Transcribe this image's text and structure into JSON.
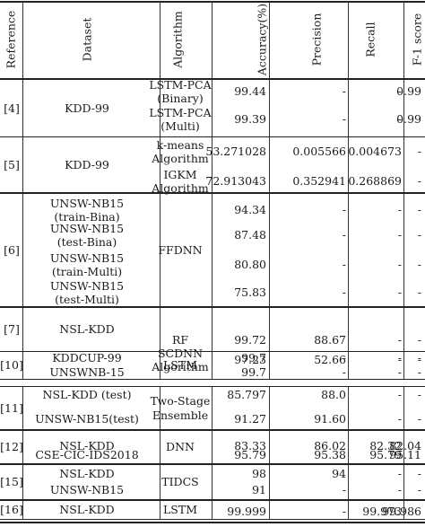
{
  "headers": {
    "reference": "Reference",
    "dataset": "Dataset",
    "algorithm": "Algorithm",
    "accuracy": "Accuracy(%)",
    "precision": "Precision",
    "recall": "Recall",
    "f1": "F-1 score"
  },
  "groups": [
    {
      "ref": "[4]",
      "datasets": [
        {
          "lines": [
            "KDD-99"
          ]
        }
      ],
      "algorithms": [
        {
          "lines": [
            "LSTM-PCA",
            "(Binary)"
          ]
        },
        {
          "lines": [
            "LSTM-PCA",
            "(Multi)"
          ]
        }
      ],
      "rows": [
        {
          "accuracy": "99.44",
          "precision": "-",
          "recall": "-",
          "f1": "0.99"
        },
        {
          "accuracy": "99.39",
          "precision": "-",
          "recall": "-",
          "f1": "0.99"
        }
      ]
    },
    {
      "ref": "[5]",
      "datasets": [
        {
          "lines": [
            "KDD-99"
          ]
        }
      ],
      "algorithms": [
        {
          "lines": [
            "k-means",
            "Algorithm"
          ]
        },
        {
          "lines": [
            "IGKM",
            "Algorithm"
          ]
        }
      ],
      "rows": [
        {
          "accuracy": "53.271028",
          "precision": "0.005566",
          "recall": "0.004673",
          "f1": "-"
        },
        {
          "accuracy": "72.913043",
          "precision": "0.352941",
          "recall": "0.268869",
          "f1": "-"
        }
      ]
    },
    {
      "ref": "[6]",
      "datasets": [
        {
          "lines": [
            "UNSW-NB15",
            "(train-Bina)"
          ]
        },
        {
          "lines": [
            "UNSW-NB15",
            "(test-Bina)"
          ]
        },
        {
          "lines": [
            "UNSW-NB15",
            "(train-Multi)"
          ]
        },
        {
          "lines": [
            "UNSW-NB15",
            "(test-Multi)"
          ]
        }
      ],
      "algorithms": [
        {
          "lines": [
            "FFDNN"
          ]
        }
      ],
      "rows": [
        {
          "accuracy": "94.34",
          "precision": "-",
          "recall": "-",
          "f1": "-"
        },
        {
          "accuracy": "87.48",
          "precision": "-",
          "recall": "-",
          "f1": "-"
        },
        {
          "accuracy": "80.80",
          "precision": "-",
          "recall": "-",
          "f1": "-"
        },
        {
          "accuracy": "75.83",
          "precision": "-",
          "recall": "-",
          "f1": "-"
        }
      ]
    },
    {
      "ref": "[7]",
      "datasets": [
        {
          "lines": [
            "NSL-KDD"
          ]
        }
      ],
      "algorithms": [
        {
          "lines": [
            "RF"
          ]
        },
        {
          "lines": [
            "SCDNN",
            "Algorithm"
          ]
        }
      ],
      "rows": [
        {
          "accuracy": "99.72",
          "precision": "88.67",
          "recall": "-",
          "f1": "-"
        },
        {
          "accuracy": "97.23",
          "precision": "52.66",
          "recall": "-",
          "f1": "-"
        }
      ]
    },
    {
      "ref": "[10]",
      "datasets": [
        {
          "lines": [
            "KDDCUP-99"
          ]
        },
        {
          "lines": [
            "UNSWNB-15"
          ]
        }
      ],
      "algorithms": [
        {
          "lines": [
            "LSTM"
          ]
        }
      ],
      "rows": [
        {
          "accuracy": "99.7",
          "precision": "-",
          "recall": "-",
          "f1": "-"
        },
        {
          "accuracy": "99.7",
          "precision": "-",
          "recall": "-",
          "f1": "-"
        }
      ]
    },
    {
      "ref": "[11]",
      "datasets": [
        {
          "lines": [
            "NSL-KDD (test)"
          ]
        },
        {
          "lines": [
            "UNSW-NB15(test)"
          ]
        }
      ],
      "algorithms": [
        {
          "lines": [
            "Two-Stage",
            "Ensemble"
          ]
        }
      ],
      "rows": [
        {
          "accuracy": "85.797",
          "precision": "88.0",
          "recall": "-",
          "f1": "-"
        },
        {
          "accuracy": "91.27",
          "precision": "91.60",
          "recall": "-",
          "f1": "-"
        }
      ]
    },
    {
      "ref": "[12]",
      "datasets": [
        {
          "lines": [
            "NSL-KDD"
          ]
        },
        {
          "lines": [
            "CSE-CIC-IDS2018"
          ]
        }
      ],
      "algorithms": [
        {
          "lines": [
            "DNN"
          ]
        }
      ],
      "rows": [
        {
          "accuracy": "83.33",
          "precision": "86.02",
          "recall": "82.32",
          "f1": "82.04"
        },
        {
          "accuracy": "95.79",
          "precision": "95.38",
          "recall": "95.79",
          "f1": "95.11"
        }
      ]
    },
    {
      "ref": "[15]",
      "datasets": [
        {
          "lines": [
            "NSL-KDD"
          ]
        },
        {
          "lines": [
            "UNSW-NB15"
          ]
        }
      ],
      "algorithms": [
        {
          "lines": [
            "TIDCS"
          ]
        }
      ],
      "rows": [
        {
          "accuracy": "98",
          "precision": "94",
          "recall": "-",
          "f1": "-"
        },
        {
          "accuracy": "91",
          "precision": "-",
          "recall": "-",
          "f1": "-"
        }
      ]
    },
    {
      "ref": "[16]",
      "datasets": [
        {
          "lines": [
            "NSL-KDD"
          ]
        }
      ],
      "algorithms": [
        {
          "lines": [
            "LSTM"
          ]
        }
      ],
      "rows": [
        {
          "accuracy": "99.999",
          "precision": "-",
          "recall": "99.973",
          "f1": "99.986"
        }
      ]
    }
  ]
}
